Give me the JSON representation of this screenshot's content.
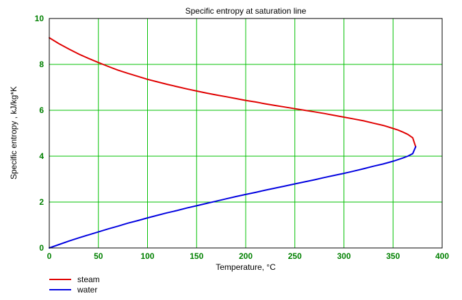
{
  "chart_data": {
    "type": "line",
    "title": "Specific entropy at saturation line",
    "xlabel": "Temperature, °C",
    "ylabel": "Specific entropy , kJ/kg*K",
    "xlim": [
      0,
      400
    ],
    "ylim": [
      0,
      10
    ],
    "x_ticks": [
      "0",
      "50",
      "100",
      "150",
      "200",
      "250",
      "300",
      "350",
      "400"
    ],
    "y_ticks": [
      "0",
      "2",
      "4",
      "6",
      "8",
      "10"
    ],
    "grid": true,
    "legend_position": "bottom-left",
    "colors": {
      "grid": "#00c000",
      "ticks": "#008000",
      "axes": "#000000"
    },
    "series": [
      {
        "name": "steam",
        "color": "#e00000",
        "points": [
          [
            0.01,
            9.16
          ],
          [
            10,
            8.9
          ],
          [
            20,
            8.67
          ],
          [
            30,
            8.45
          ],
          [
            40,
            8.26
          ],
          [
            50,
            8.08
          ],
          [
            60,
            7.91
          ],
          [
            70,
            7.75
          ],
          [
            80,
            7.61
          ],
          [
            90,
            7.48
          ],
          [
            100,
            7.35
          ],
          [
            110,
            7.24
          ],
          [
            120,
            7.13
          ],
          [
            130,
            7.03
          ],
          [
            140,
            6.93
          ],
          [
            150,
            6.84
          ],
          [
            160,
            6.75
          ],
          [
            170,
            6.67
          ],
          [
            180,
            6.59
          ],
          [
            190,
            6.51
          ],
          [
            200,
            6.43
          ],
          [
            210,
            6.36
          ],
          [
            220,
            6.28
          ],
          [
            230,
            6.21
          ],
          [
            240,
            6.14
          ],
          [
            250,
            6.07
          ],
          [
            260,
            6.0
          ],
          [
            270,
            5.93
          ],
          [
            280,
            5.86
          ],
          [
            290,
            5.78
          ],
          [
            300,
            5.7
          ],
          [
            310,
            5.62
          ],
          [
            320,
            5.54
          ],
          [
            330,
            5.44
          ],
          [
            340,
            5.34
          ],
          [
            350,
            5.21
          ],
          [
            355,
            5.14
          ],
          [
            360,
            5.05
          ],
          [
            365,
            4.95
          ],
          [
            370,
            4.8
          ],
          [
            373,
            4.41
          ]
        ]
      },
      {
        "name": "water",
        "color": "#0000e0",
        "points": [
          [
            0.01,
            0.0
          ],
          [
            10,
            0.15
          ],
          [
            20,
            0.3
          ],
          [
            30,
            0.44
          ],
          [
            40,
            0.57
          ],
          [
            50,
            0.7
          ],
          [
            60,
            0.83
          ],
          [
            70,
            0.95
          ],
          [
            80,
            1.08
          ],
          [
            90,
            1.19
          ],
          [
            100,
            1.31
          ],
          [
            110,
            1.42
          ],
          [
            120,
            1.53
          ],
          [
            130,
            1.63
          ],
          [
            140,
            1.74
          ],
          [
            150,
            1.84
          ],
          [
            160,
            1.94
          ],
          [
            170,
            2.04
          ],
          [
            180,
            2.14
          ],
          [
            190,
            2.24
          ],
          [
            200,
            2.33
          ],
          [
            210,
            2.42
          ],
          [
            220,
            2.52
          ],
          [
            230,
            2.61
          ],
          [
            240,
            2.7
          ],
          [
            250,
            2.79
          ],
          [
            260,
            2.88
          ],
          [
            270,
            2.97
          ],
          [
            280,
            3.07
          ],
          [
            290,
            3.16
          ],
          [
            300,
            3.25
          ],
          [
            310,
            3.35
          ],
          [
            320,
            3.45
          ],
          [
            330,
            3.56
          ],
          [
            340,
            3.66
          ],
          [
            350,
            3.78
          ],
          [
            360,
            3.92
          ],
          [
            365,
            4.0
          ],
          [
            370,
            4.11
          ],
          [
            373,
            4.41
          ]
        ]
      }
    ]
  }
}
